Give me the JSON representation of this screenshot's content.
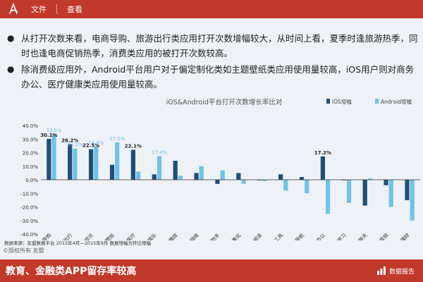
{
  "appbar": {
    "menu": [
      "文件",
      "查看"
    ]
  },
  "bullets": [
    "从打开次数来看，电商导购、旅游出行类应用打开次数增幅较大，从时间上看，夏季时逢旅游热季，同时也逢电商促销热季，消费类应用的被打开次数较高。",
    "除消费级应用外，Android平台用户对于偏定制化类如主题壁纸类应用使用量较高，iOS用户则对商务办公、医疗健康类应用使用量较高。"
  ],
  "footnote": "数据来源：友盟数据平台 2015年4月—2015年9月 数据增幅为环比增幅",
  "copyright": "©版权所有 友盟",
  "banner": {
    "title": "教育、金融类APP留存率较高",
    "right": "数据报告"
  },
  "colors": {
    "ios": "#1f4e79",
    "android": "#6fc3e8",
    "accent": "#c0392b"
  },
  "chart_data": {
    "type": "bar",
    "title": "iOS&Android平台打开次数增长率比对",
    "ylim": [
      -40,
      40
    ],
    "yticks": [
      "40.0%",
      "30.0%",
      "20.0%",
      "10.0%",
      "0.0%",
      "-10.0%",
      "-20.0%",
      "-30.0%",
      "-40.0%"
    ],
    "categories": [
      "电商导购",
      "旅游出行",
      "新闻资讯",
      "主题壁纸",
      "健康医疗",
      "休闲娱乐",
      "视频播放",
      "社交网络",
      "生活助手",
      "拍摄美化",
      "图书阅读",
      "系统工具",
      "交通导航",
      "商务办公",
      "教育学习",
      "通信聊天",
      "音乐音频",
      "金融理财"
    ],
    "series": [
      {
        "name": "iOS增幅",
        "values": [
          30.1,
          26.2,
          22.5,
          11.0,
          22.1,
          4.0,
          14.0,
          5.0,
          -3.0,
          5.0,
          0.0,
          4.0,
          2.0,
          17.2,
          0.0,
          -19.0,
          -4.0,
          -15.0
        ]
      },
      {
        "name": "Android增幅",
        "values": [
          33.5,
          23.0,
          24.5,
          27.5,
          6.0,
          17.4,
          3.0,
          10.0,
          7.0,
          -3.0,
          -1.0,
          -8.0,
          -10.0,
          -25.0,
          -17.0,
          1.0,
          -20.0,
          -30.0
        ]
      }
    ],
    "data_labels": [
      {
        "series": 0,
        "index": 0,
        "text": "30.1%"
      },
      {
        "series": 1,
        "index": 0,
        "text": "33.5%"
      },
      {
        "series": 0,
        "index": 1,
        "text": "26.2%"
      },
      {
        "series": 1,
        "index": 1,
        "text": "23.0%"
      },
      {
        "series": 0,
        "index": 2,
        "text": "22.5%"
      },
      {
        "series": 1,
        "index": 2,
        "text": "24.5%"
      },
      {
        "series": 1,
        "index": 3,
        "text": "27.5%"
      },
      {
        "series": 0,
        "index": 4,
        "text": "22.1%"
      },
      {
        "series": 1,
        "index": 5,
        "text": "17.4%"
      },
      {
        "series": 0,
        "index": 13,
        "text": "17.2%"
      }
    ],
    "legend_position": "top-right",
    "grid": false
  }
}
